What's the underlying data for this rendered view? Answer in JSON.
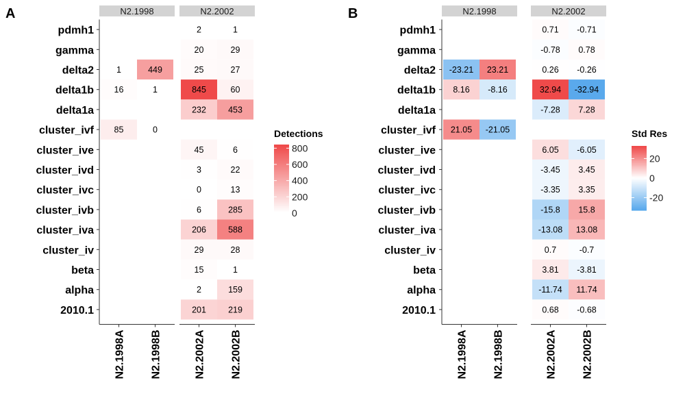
{
  "chart_data": [
    {
      "panel_label": "A",
      "type": "heatmap",
      "rows": [
        "pdmh1",
        "gamma",
        "delta2",
        "delta1b",
        "delta1a",
        "cluster_ivf",
        "cluster_ive",
        "cluster_ivd",
        "cluster_ivc",
        "cluster_ivb",
        "cluster_iva",
        "cluster_iv",
        "beta",
        "alpha",
        "2010.1"
      ],
      "facets": [
        {
          "label": "N2.1998",
          "columns": [
            "N2.1998A",
            "N2.1998B"
          ],
          "values": [
            [
              null,
              null
            ],
            [
              null,
              null
            ],
            [
              1,
              449
            ],
            [
              16,
              1
            ],
            [
              null,
              null
            ],
            [
              85,
              0
            ],
            [
              null,
              null
            ],
            [
              null,
              null
            ],
            [
              null,
              null
            ],
            [
              null,
              null
            ],
            [
              null,
              null
            ],
            [
              null,
              null
            ],
            [
              null,
              null
            ],
            [
              null,
              null
            ],
            [
              null,
              null
            ]
          ]
        },
        {
          "label": "N2.2002",
          "columns": [
            "N2.2002A",
            "N2.2002B"
          ],
          "values": [
            [
              2,
              1
            ],
            [
              20,
              29
            ],
            [
              25,
              27
            ],
            [
              845,
              60
            ],
            [
              232,
              453
            ],
            [
              null,
              null
            ],
            [
              45,
              6
            ],
            [
              3,
              22
            ],
            [
              0,
              13
            ],
            [
              6,
              285
            ],
            [
              206,
              588
            ],
            [
              29,
              28
            ],
            [
              15,
              1
            ],
            [
              2,
              159
            ],
            [
              201,
              219
            ]
          ]
        }
      ],
      "legend": {
        "title": "Detections",
        "ticks": [
          "800",
          "600",
          "400",
          "200",
          "0"
        ],
        "tick_values": [
          800,
          600,
          400,
          200,
          0
        ],
        "range": [
          0,
          845
        ],
        "colors": {
          "low": "#ffffff",
          "high": "#ef4a4a"
        }
      }
    },
    {
      "panel_label": "B",
      "type": "heatmap",
      "rows": [
        "pdmh1",
        "gamma",
        "delta2",
        "delta1b",
        "delta1a",
        "cluster_ivf",
        "cluster_ive",
        "cluster_ivd",
        "cluster_ivc",
        "cluster_ivb",
        "cluster_iva",
        "cluster_iv",
        "beta",
        "alpha",
        "2010.1"
      ],
      "facets": [
        {
          "label": "N2.1998",
          "columns": [
            "N2.1998A",
            "N2.1998B"
          ],
          "values": [
            [
              null,
              null
            ],
            [
              null,
              null
            ],
            [
              -23.21,
              23.21
            ],
            [
              8.16,
              -8.16
            ],
            [
              null,
              null
            ],
            [
              21.05,
              -21.05
            ],
            [
              null,
              null
            ],
            [
              null,
              null
            ],
            [
              null,
              null
            ],
            [
              null,
              null
            ],
            [
              null,
              null
            ],
            [
              null,
              null
            ],
            [
              null,
              null
            ],
            [
              null,
              null
            ],
            [
              null,
              null
            ]
          ],
          "labels": [
            [
              null,
              null
            ],
            [
              null,
              null
            ],
            [
              "-23.21",
              "23.21"
            ],
            [
              "8.16",
              "-8.16"
            ],
            [
              null,
              null
            ],
            [
              "21.05",
              "-21.05"
            ],
            [
              null,
              null
            ],
            [
              null,
              null
            ],
            [
              null,
              null
            ],
            [
              null,
              null
            ],
            [
              null,
              null
            ],
            [
              null,
              null
            ],
            [
              null,
              null
            ],
            [
              null,
              null
            ],
            [
              null,
              null
            ]
          ]
        },
        {
          "label": "N2.2002",
          "columns": [
            "N2.2002A",
            "N2.2002B"
          ],
          "values": [
            [
              0.71,
              -0.71
            ],
            [
              -0.78,
              0.78
            ],
            [
              0.26,
              -0.26
            ],
            [
              32.94,
              -32.94
            ],
            [
              -7.28,
              7.28
            ],
            [
              null,
              null
            ],
            [
              6.05,
              -6.05
            ],
            [
              -3.45,
              3.45
            ],
            [
              -3.35,
              3.35
            ],
            [
              -15.8,
              15.8
            ],
            [
              -13.08,
              13.08
            ],
            [
              0.7,
              -0.7
            ],
            [
              3.81,
              -3.81
            ],
            [
              -11.74,
              11.74
            ],
            [
              0.68,
              -0.68
            ]
          ],
          "labels": [
            [
              "0.71",
              "-0.71"
            ],
            [
              "-0.78",
              "0.78"
            ],
            [
              "0.26",
              "-0.26"
            ],
            [
              "32.94",
              "-32.94"
            ],
            [
              "-7.28",
              "7.28"
            ],
            [
              null,
              null
            ],
            [
              "6.05",
              "-6.05"
            ],
            [
              "-3.45",
              "3.45"
            ],
            [
              "-3.35",
              "3.35"
            ],
            [
              "-15.8",
              "15.8"
            ],
            [
              "-13.08",
              "13.08"
            ],
            [
              "0.7",
              "-0.7"
            ],
            [
              "3.81",
              "-3.81"
            ],
            [
              "-11.74",
              "11.74"
            ],
            [
              "0.68",
              "-0.68"
            ]
          ]
        }
      ],
      "legend": {
        "title": "Std Res",
        "ticks": [
          "20",
          "0",
          "-20"
        ],
        "tick_values": [
          20,
          0,
          -20
        ],
        "range": [
          -32.94,
          32.94
        ],
        "colors": {
          "low": "#5aa9ec",
          "mid": "#ffffff",
          "high": "#ef4a4a"
        }
      }
    }
  ]
}
